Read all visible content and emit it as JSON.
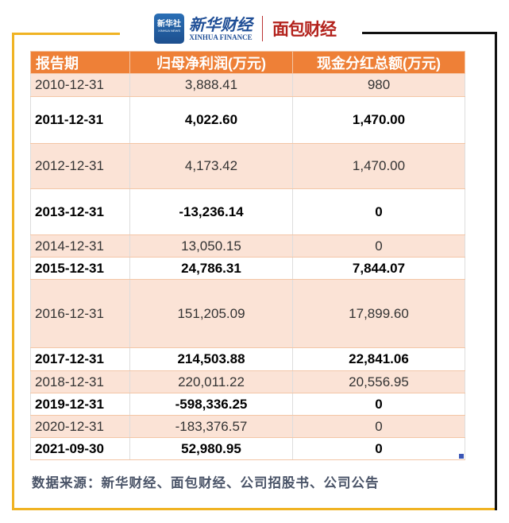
{
  "logos": {
    "xinhua_icon_text": "新华社",
    "xinhua_icon_sub": "XINHUA NEWS",
    "xinhua_finance_cn": "新华财经",
    "xinhua_finance_en": "XINHUA FINANCE",
    "mianbao": "面包财经"
  },
  "table": {
    "headers": [
      "报告期",
      "归母净利润(万元)",
      "现金分红总额(万元)"
    ],
    "rows": [
      {
        "date": "2010-12-31",
        "profit": "3,888.41",
        "dividend": "980"
      },
      {
        "date": "2011-12-31",
        "profit": "4,022.60",
        "dividend": "1,470.00"
      },
      {
        "date": "2012-12-31",
        "profit": "4,173.42",
        "dividend": "1,470.00"
      },
      {
        "date": "2013-12-31",
        "profit": "-13,236.14",
        "dividend": "0"
      },
      {
        "date": "2014-12-31",
        "profit": "13,050.15",
        "dividend": "0"
      },
      {
        "date": "2015-12-31",
        "profit": "24,786.31",
        "dividend": "7,844.07"
      },
      {
        "date": "2016-12-31",
        "profit": "151,205.09",
        "dividend": "17,899.60"
      },
      {
        "date": "2017-12-31",
        "profit": "214,503.88",
        "dividend": "22,841.06"
      },
      {
        "date": "2018-12-31",
        "profit": "220,011.22",
        "dividend": "20,556.95"
      },
      {
        "date": "2019-12-31",
        "profit": "-598,336.25",
        "dividend": "0"
      },
      {
        "date": "2020-12-31",
        "profit": "-183,376.57",
        "dividend": "0"
      },
      {
        "date": "2021-09-30",
        "profit": "52,980.95",
        "dividend": "0"
      }
    ]
  },
  "source": "数据来源：新华财经、面包财经、公司招股书、公司公告",
  "colors": {
    "header": "#ee8037",
    "stripe": "#fbe3d6",
    "frame_yellow": "#f0b323"
  }
}
